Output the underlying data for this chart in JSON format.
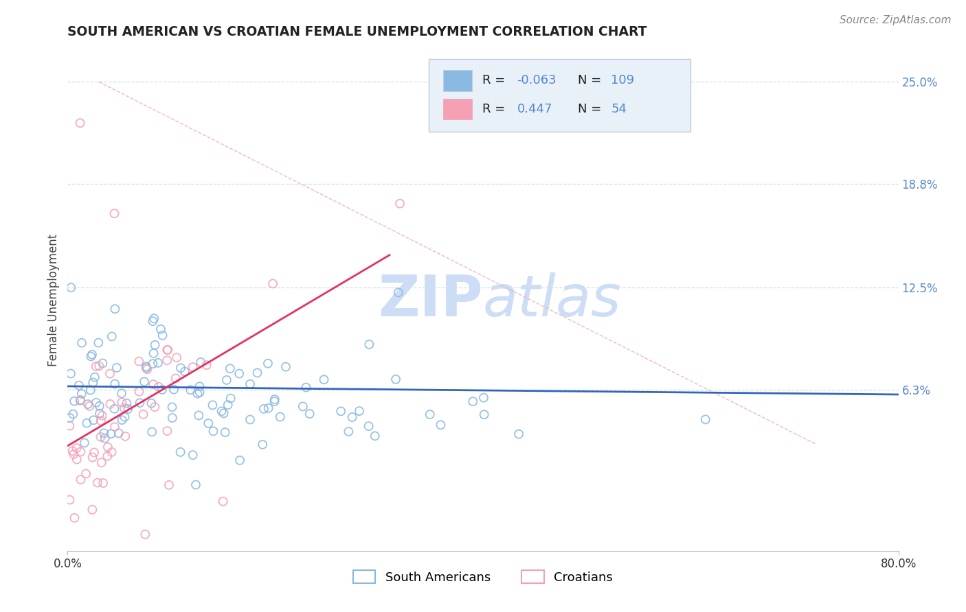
{
  "title": "SOUTH AMERICAN VS CROATIAN FEMALE UNEMPLOYMENT CORRELATION CHART",
  "source": "Source: ZipAtlas.com",
  "ylabel": "Female Unemployment",
  "xlim": [
    0.0,
    80.0
  ],
  "ylim": [
    -3.5,
    27.0
  ],
  "yticks": [
    6.3,
    12.5,
    18.8,
    25.0
  ],
  "blue_R": "-0.063",
  "blue_N": "109",
  "pink_R": "0.447",
  "pink_N": "54",
  "blue_color": "#89b8e0",
  "pink_color": "#f5a0b5",
  "trend_blue_color": "#3366bb",
  "trend_pink_color": "#e83060",
  "diag_color": "#f0b0c0",
  "grid_color": "#d0dff0",
  "watermark_color": "#ccddf5",
  "legend_box_color": "#e8f0f8",
  "legend_border_color": "#c0ccdd",
  "title_color": "#222222",
  "axis_label_color": "#5588cc",
  "sa_legend_label": "South Americans",
  "cr_legend_label": "Croatians"
}
